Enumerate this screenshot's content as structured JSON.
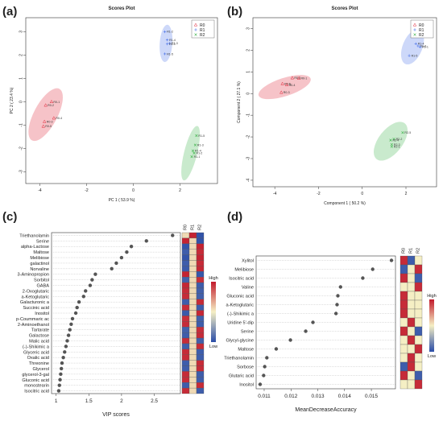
{
  "panels": {
    "a": "(a)",
    "b": "(b)",
    "c": "(c)",
    "d": "(d)"
  },
  "colors": {
    "R0": "#e0283a",
    "R1": "#4a72e8",
    "R2": "#3cb24a",
    "dot": "#555555",
    "hm_high": "#c21a2c",
    "hm_mid": "#f5efc4",
    "hm_low": "#2a4da8"
  },
  "chart_data": [
    {
      "id": "a",
      "type": "scatter",
      "title": "Scores Plot",
      "xlabel": "PC 1 ( 53.9 %)",
      "ylabel": "PC 2 ( 23.4 %)",
      "xlim": [
        -4.6,
        3.6
      ],
      "ylim": [
        -3.5,
        3.6
      ],
      "xticks": [
        -4,
        -2,
        0,
        2
      ],
      "yticks": [
        -3,
        -2,
        -1,
        0,
        1,
        2,
        3
      ],
      "legend": [
        "R0",
        "R1",
        "R2"
      ],
      "legend_position": "top-right",
      "series": [
        {
          "name": "R0",
          "marker": "triangle",
          "ellipse": {
            "cx": -3.75,
            "cy": -0.55,
            "rx": 0.5,
            "ry": 1.25,
            "angle": 28
          },
          "points": [
            {
              "x": -3.5,
              "y": 0.0,
              "label": "R0-1"
            },
            {
              "x": -3.75,
              "y": -0.15,
              "label": "R0-2"
            },
            {
              "x": -3.4,
              "y": -0.7,
              "label": "R0-4"
            },
            {
              "x": -3.8,
              "y": -0.85,
              "label": "R0-3"
            },
            {
              "x": -3.85,
              "y": -1.05,
              "label": "R0-5"
            }
          ]
        },
        {
          "name": "R1",
          "marker": "plus",
          "ellipse": {
            "cx": 1.4,
            "cy": 2.5,
            "rx": 0.27,
            "ry": 0.8,
            "angle": 4
          },
          "points": [
            {
              "x": 1.35,
              "y": 3.0,
              "label": "R1-2"
            },
            {
              "x": 1.45,
              "y": 2.65,
              "label": "R1-4"
            },
            {
              "x": 1.55,
              "y": 2.5,
              "label": "R1-3"
            },
            {
              "x": 1.45,
              "y": 2.48,
              "label": "R1-1"
            },
            {
              "x": 1.35,
              "y": 2.05,
              "label": "R1-5"
            }
          ]
        },
        {
          "name": "R2",
          "marker": "x",
          "ellipse": {
            "cx": 2.45,
            "cy": -2.2,
            "rx": 0.28,
            "ry": 1.2,
            "angle": 14
          },
          "points": [
            {
              "x": 2.7,
              "y": -1.45,
              "label": "R1-5"
            },
            {
              "x": 2.65,
              "y": -1.85,
              "label": "R1-3"
            },
            {
              "x": 2.55,
              "y": -2.1,
              "label": "R1-4"
            },
            {
              "x": 2.6,
              "y": -2.2,
              "label": "R1-2"
            },
            {
              "x": 2.5,
              "y": -2.35,
              "label": "R1-1"
            }
          ]
        }
      ]
    },
    {
      "id": "b",
      "type": "scatter",
      "title": "Scores Plot",
      "xlabel": "Component 1 ( 50.2 %)",
      "ylabel": "Component 2 ( 27.1 %)",
      "xlim": [
        -5.0,
        3.4
      ],
      "ylim": [
        -4.3,
        3.5
      ],
      "xticks": [
        -4,
        -2,
        0,
        2
      ],
      "yticks": [
        -4,
        -3,
        -2,
        -1,
        0,
        1,
        2,
        3
      ],
      "legend": [
        "R0",
        "R1",
        "R2"
      ],
      "legend_position": "top-right",
      "series": [
        {
          "name": "R0",
          "marker": "triangle",
          "ellipse": {
            "cx": -3.55,
            "cy": 0.3,
            "rx": 1.25,
            "ry": 0.42,
            "angle": -18
          },
          "points": [
            {
              "x": -3.2,
              "y": 0.72,
              "label": "R0-2"
            },
            {
              "x": -2.9,
              "y": 0.7,
              "label": "R0-1"
            },
            {
              "x": -3.65,
              "y": 0.45,
              "label": "R0-5"
            },
            {
              "x": -3.45,
              "y": 0.4,
              "label": "R0-4"
            },
            {
              "x": -3.7,
              "y": 0.05,
              "label": "R0-3"
            }
          ]
        },
        {
          "name": "R1",
          "marker": "plus",
          "ellipse": {
            "cx": 2.3,
            "cy": 2.15,
            "rx": 0.45,
            "ry": 0.85,
            "angle": 22
          },
          "points": [
            {
              "x": 2.5,
              "y": 2.7,
              "label": "R1-2"
            },
            {
              "x": 2.45,
              "y": 2.3,
              "label": "R1-4"
            },
            {
              "x": 2.55,
              "y": 2.2,
              "label": "R1-3"
            },
            {
              "x": 2.65,
              "y": 2.15,
              "label": "R1-1"
            },
            {
              "x": 2.15,
              "y": 1.75,
              "label": "R1-5"
            }
          ]
        },
        {
          "name": "R2",
          "marker": "x",
          "ellipse": {
            "cx": 1.3,
            "cy": -2.2,
            "rx": 0.55,
            "ry": 1.05,
            "angle": 38
          },
          "points": [
            {
              "x": 1.85,
              "y": -1.8,
              "label": "R2-5"
            },
            {
              "x": 1.45,
              "y": -2.1,
              "label": "R2-2"
            },
            {
              "x": 1.3,
              "y": -2.15,
              "label": "R2-4"
            },
            {
              "x": 1.35,
              "y": -2.35,
              "label": "R2-3"
            },
            {
              "x": 1.35,
              "y": -2.45,
              "label": "R2-1"
            }
          ]
        }
      ]
    },
    {
      "id": "c",
      "type": "scatter",
      "xlabel": "VIP scores",
      "xlim": [
        0.93,
        2.9
      ],
      "xticks": [
        1.0,
        1.5,
        2.0,
        2.5
      ],
      "heatmap_columns": [
        "R0",
        "R1",
        "R2"
      ],
      "colorbar": {
        "high": "High",
        "low": "Low"
      },
      "rows": [
        {
          "label": "Triethanolamin",
          "value": 2.78,
          "heat": [
            0.55,
            0.98,
            0.02
          ]
        },
        {
          "label": "Serine",
          "value": 2.38,
          "heat": [
            0.98,
            0.55,
            0.02
          ]
        },
        {
          "label": "alpha-Lactose",
          "value": 2.15,
          "heat": [
            0.02,
            0.55,
            0.98
          ]
        },
        {
          "label": "Maltose",
          "value": 2.08,
          "heat": [
            0.05,
            0.55,
            0.96
          ]
        },
        {
          "label": "Melibiose",
          "value": 2.0,
          "heat": [
            0.02,
            0.55,
            0.98
          ]
        },
        {
          "label": "galactinol",
          "value": 1.92,
          "heat": [
            0.05,
            0.55,
            0.96
          ]
        },
        {
          "label": "Norvaline",
          "value": 1.85,
          "heat": [
            0.04,
            0.55,
            0.97
          ]
        },
        {
          "label": "3-Aminopropion",
          "value": 1.6,
          "heat": [
            0.98,
            0.55,
            0.03
          ]
        },
        {
          "label": "Sorbitol",
          "value": 1.55,
          "heat": [
            0.06,
            0.55,
            0.95
          ]
        },
        {
          "label": "GABA",
          "value": 1.52,
          "heat": [
            0.97,
            0.55,
            0.05
          ]
        },
        {
          "label": "2-Oxoglutaric",
          "value": 1.45,
          "heat": [
            0.96,
            0.55,
            0.06
          ]
        },
        {
          "label": "a-Ketoglutaric",
          "value": 1.42,
          "heat": [
            0.96,
            0.55,
            0.06
          ]
        },
        {
          "label": "Galacturonic a",
          "value": 1.35,
          "heat": [
            0.05,
            0.55,
            0.96
          ]
        },
        {
          "label": "Succinic acid",
          "value": 1.32,
          "heat": [
            0.96,
            0.55,
            0.05
          ]
        },
        {
          "label": "Inositol",
          "value": 1.3,
          "heat": [
            0.04,
            0.55,
            0.97
          ]
        },
        {
          "label": "p-Coummaric ac",
          "value": 1.25,
          "heat": [
            0.95,
            0.55,
            0.06
          ]
        },
        {
          "label": "2-Aminoethanol",
          "value": 1.23,
          "heat": [
            0.96,
            0.55,
            0.05
          ]
        },
        {
          "label": "Tartarate",
          "value": 1.21,
          "heat": [
            0.06,
            0.55,
            0.95
          ]
        },
        {
          "label": "Galactose",
          "value": 1.19,
          "heat": [
            0.05,
            0.55,
            0.96
          ]
        },
        {
          "label": "Malic acid",
          "value": 1.17,
          "heat": [
            0.96,
            0.55,
            0.06
          ]
        },
        {
          "label": "(-)-Shikimic a",
          "value": 1.15,
          "heat": [
            0.05,
            0.55,
            0.96
          ]
        },
        {
          "label": "Glyceric acid",
          "value": 1.13,
          "heat": [
            0.96,
            0.55,
            0.05
          ]
        },
        {
          "label": "Oxalic acid",
          "value": 1.11,
          "heat": [
            0.96,
            0.55,
            0.05
          ]
        },
        {
          "label": "Threonine",
          "value": 1.09,
          "heat": [
            0.05,
            0.55,
            0.96
          ]
        },
        {
          "label": "Glycerol",
          "value": 1.08,
          "heat": [
            0.05,
            0.55,
            0.96
          ]
        },
        {
          "label": "glycerol-3-gal",
          "value": 1.07,
          "heat": [
            0.96,
            0.55,
            0.05
          ]
        },
        {
          "label": "Gluconic acid",
          "value": 1.06,
          "heat": [
            0.96,
            0.55,
            0.05
          ]
        },
        {
          "label": "monostearin",
          "value": 1.05,
          "heat": [
            0.05,
            0.55,
            0.96
          ]
        },
        {
          "label": "Isocitric acid",
          "value": 1.04,
          "heat": [
            0.96,
            0.55,
            0.05
          ]
        }
      ]
    },
    {
      "id": "d",
      "type": "scatter",
      "xlabel": "MeanDecreaseAccuracy",
      "xlim": [
        0.0107,
        0.0159
      ],
      "xticks": [
        0.011,
        0.012,
        0.013,
        0.014,
        0.015
      ],
      "heatmap_columns": [
        "R0",
        "R1",
        "R2"
      ],
      "colorbar": {
        "high": "High",
        "low": "Low"
      },
      "rows": [
        {
          "label": "Xylitol",
          "value": 0.01575,
          "heat": [
            0.96,
            0.05,
            0.5
          ]
        },
        {
          "label": "Melibiose",
          "value": 0.01505,
          "heat": [
            0.05,
            0.5,
            0.96
          ]
        },
        {
          "label": "Isocitric acid",
          "value": 0.01468,
          "heat": [
            0.96,
            0.5,
            0.05
          ]
        },
        {
          "label": "Valine",
          "value": 0.01385,
          "heat": [
            0.5,
            0.5,
            0.96
          ]
        },
        {
          "label": "Gluconic acid",
          "value": 0.01375,
          "heat": [
            0.96,
            0.5,
            0.5
          ]
        },
        {
          "label": "a-Ketoglutaric",
          "value": 0.01372,
          "heat": [
            0.96,
            0.5,
            0.5
          ]
        },
        {
          "label": "(-)-Shikimic a",
          "value": 0.01368,
          "heat": [
            0.96,
            0.5,
            0.5
          ]
        },
        {
          "label": "Uridine 5'-dip",
          "value": 0.01282,
          "heat": [
            0.5,
            0.96,
            0.5
          ]
        },
        {
          "label": "Serine",
          "value": 0.01255,
          "heat": [
            0.96,
            0.5,
            0.05
          ]
        },
        {
          "label": "Glycyl-glycine",
          "value": 0.01198,
          "heat": [
            0.5,
            0.96,
            0.5
          ]
        },
        {
          "label": "Maltose",
          "value": 0.01145,
          "heat": [
            0.5,
            0.5,
            0.96
          ]
        },
        {
          "label": "Triethanolamin",
          "value": 0.0111,
          "heat": [
            0.5,
            0.96,
            0.5
          ]
        },
        {
          "label": "Sorbose",
          "value": 0.01102,
          "heat": [
            0.05,
            0.96,
            0.5
          ]
        },
        {
          "label": "Glutaric acid",
          "value": 0.01098,
          "heat": [
            0.96,
            0.5,
            0.05
          ]
        },
        {
          "label": "Inositol",
          "value": 0.01085,
          "heat": [
            0.5,
            0.5,
            0.96
          ]
        }
      ]
    }
  ]
}
